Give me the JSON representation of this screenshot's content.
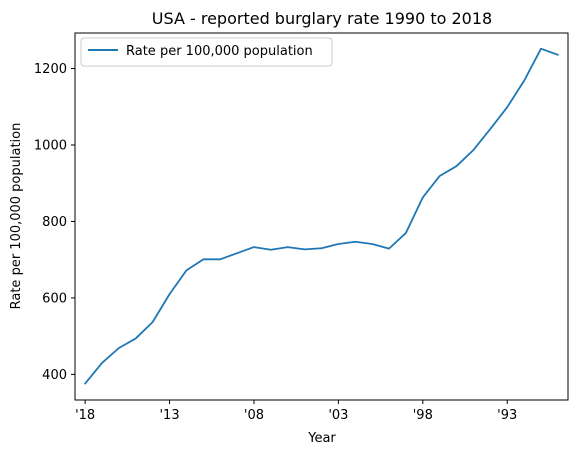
{
  "chart_data": {
    "type": "line",
    "title": "USA - reported burglary rate 1990 to 2018",
    "xlabel": "Year",
    "ylabel": "Rate per 100,000 population",
    "x": [
      2018,
      2017,
      2016,
      2015,
      2014,
      2013,
      2012,
      2011,
      2010,
      2009,
      2008,
      2007,
      2006,
      2005,
      2004,
      2003,
      2002,
      2001,
      2000,
      1999,
      1998,
      1997,
      1996,
      1995,
      1994,
      1993,
      1992,
      1991,
      1990
    ],
    "x_ticks": [
      2018,
      2013,
      2008,
      2003,
      1998,
      1993
    ],
    "x_tick_labels": [
      "'18",
      "'13",
      "'08",
      "'03",
      "'98",
      "'93"
    ],
    "x_reversed": true,
    "xlim": [
      2018.6,
      1989.4
    ],
    "ylim": [
      333,
      1293
    ],
    "y_ticks": [
      400,
      600,
      800,
      1000,
      1200
    ],
    "y_tick_labels": [
      "400",
      "600",
      "800",
      "1000",
      "1200"
    ],
    "grid": false,
    "legend_position": "top-left",
    "series": [
      {
        "name": "Rate per 100,000 population",
        "color": "#1f77b4",
        "values": [
          376,
          430,
          469,
          494,
          537,
          610,
          672,
          701,
          701,
          717,
          733,
          726,
          733,
          727,
          730,
          741,
          747,
          741,
          729,
          770,
          863,
          919,
          945,
          987,
          1042,
          1099,
          1168,
          1252,
          1236
        ]
      }
    ]
  }
}
